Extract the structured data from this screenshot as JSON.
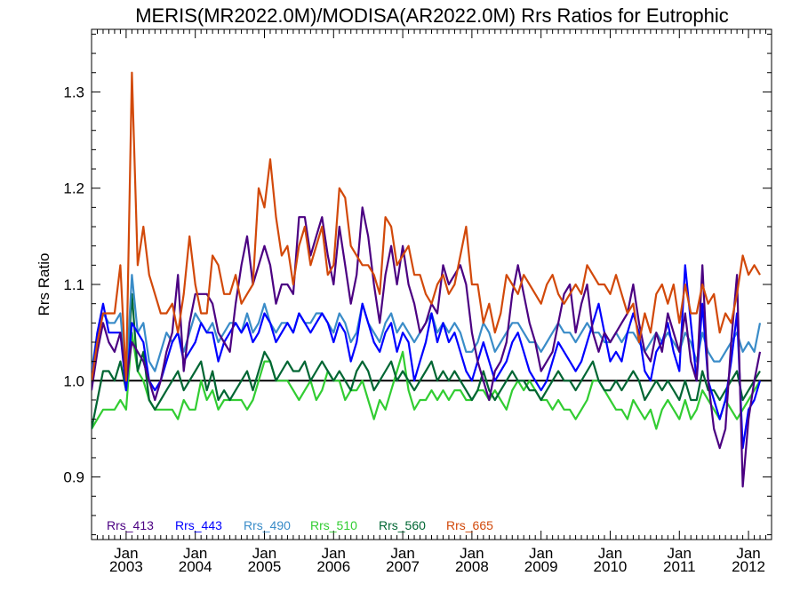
{
  "chart_data": {
    "type": "line",
    "title": "MERIS(MR2022.0M)/MODISA(AR2022.0M)  Rrs Ratios for Eutrophic",
    "xlabel": "",
    "ylabel": "Rrs Ratio",
    "xlim": [
      "2002-07-01",
      "2012-05-01"
    ],
    "ylim": [
      0.835,
      1.365
    ],
    "yticks": [
      0.9,
      1.0,
      1.1,
      1.2,
      1.3
    ],
    "ytick_labels": [
      "0.9",
      "1.0",
      "1.1",
      "1.2",
      "1.3"
    ],
    "xticks": [
      "2003-01-01",
      "2004-01-01",
      "2005-01-01",
      "2006-01-01",
      "2007-01-01",
      "2008-01-01",
      "2009-01-01",
      "2010-01-01",
      "2011-01-01",
      "2012-01-01"
    ],
    "xtick_labels": [
      {
        "month": "Jan",
        "year": "2003"
      },
      {
        "month": "Jan",
        "year": "2004"
      },
      {
        "month": "Jan",
        "year": "2005"
      },
      {
        "month": "Jan",
        "year": "2006"
      },
      {
        "month": "Jan",
        "year": "2007"
      },
      {
        "month": "Jan",
        "year": "2008"
      },
      {
        "month": "Jan",
        "year": "2009"
      },
      {
        "month": "Jan",
        "year": "2010"
      },
      {
        "month": "Jan",
        "year": "2011"
      },
      {
        "month": "Jan",
        "year": "2012"
      }
    ],
    "reference_line": {
      "y": 1.0,
      "color": "#000000"
    },
    "grid": false,
    "legend_placement": "bottom-left",
    "x_start": "2002-07",
    "x_step": "1 month",
    "series": [
      {
        "name": "Rrs_413",
        "color": "#4B0082",
        "values": [
          0.99,
          1.03,
          1.06,
          1.04,
          1.03,
          1.05,
          1.0,
          1.04,
          1.03,
          1.02,
          1.0,
          0.98,
          1.0,
          1.03,
          1.05,
          1.11,
          1.01,
          1.06,
          1.09,
          1.09,
          1.09,
          1.08,
          1.05,
          1.04,
          1.03,
          1.08,
          1.12,
          1.15,
          1.1,
          1.12,
          1.14,
          1.12,
          1.08,
          1.1,
          1.1,
          1.09,
          1.17,
          1.17,
          1.13,
          1.15,
          1.17,
          1.13,
          1.1,
          1.16,
          1.12,
          1.08,
          1.11,
          1.18,
          1.15,
          1.1,
          1.06,
          1.11,
          1.14,
          1.1,
          1.14,
          1.1,
          1.08,
          1.05,
          1.06,
          1.08,
          1.07,
          1.12,
          1.1,
          1.11,
          1.12,
          1.1,
          1.05,
          1.02,
          1.0,
          0.98,
          1.01,
          1.02,
          1.04,
          1.09,
          1.12,
          1.09,
          1.06,
          1.04,
          1.01,
          1.02,
          1.03,
          1.06,
          1.09,
          1.1,
          1.05,
          1.08,
          1.1,
          1.05,
          1.03,
          1.05,
          1.04,
          1.05,
          1.06,
          1.07,
          1.1,
          1.06,
          1.03,
          1.02,
          1.05,
          1.03,
          1.07,
          1.05,
          1.03,
          1.07,
          1.02,
          1.0,
          1.12,
          1.0,
          0.95,
          0.93,
          0.95,
          1.04,
          1.11,
          0.89,
          0.96,
          1.0,
          1.03
        ]
      },
      {
        "name": "Rrs_443",
        "color": "#0000FF",
        "values": [
          1.0,
          1.05,
          1.08,
          1.05,
          1.05,
          1.05,
          0.99,
          1.06,
          1.05,
          1.04,
          1.0,
          0.99,
          1.0,
          1.02,
          1.04,
          1.05,
          1.02,
          1.03,
          1.04,
          1.06,
          1.05,
          1.05,
          1.02,
          1.04,
          1.05,
          1.06,
          1.05,
          1.06,
          1.04,
          1.05,
          1.07,
          1.06,
          1.04,
          1.05,
          1.06,
          1.05,
          1.07,
          1.06,
          1.05,
          1.06,
          1.07,
          1.06,
          1.04,
          1.06,
          1.05,
          1.02,
          1.04,
          1.08,
          1.06,
          1.04,
          1.03,
          1.05,
          1.06,
          1.03,
          1.05,
          1.04,
          1.0,
          1.02,
          1.04,
          1.07,
          1.04,
          1.06,
          1.04,
          1.05,
          1.03,
          1.01,
          1.0,
          1.02,
          1.04,
          1.02,
          1.0,
          1.01,
          1.02,
          1.04,
          1.05,
          1.03,
          1.01,
          1.0,
          0.99,
          1.0,
          1.02,
          1.04,
          1.03,
          1.02,
          1.01,
          1.02,
          1.04,
          1.06,
          1.08,
          1.05,
          1.02,
          1.03,
          1.02,
          1.05,
          1.07,
          1.05,
          1.01,
          1.0,
          1.03,
          1.04,
          1.06,
          1.03,
          1.01,
          1.12,
          1.06,
          1.0,
          1.08,
          1.0,
          0.98,
          0.96,
          0.98,
          1.02,
          1.07,
          0.93,
          0.97,
          0.98,
          1.0
        ]
      },
      {
        "name": "Rrs_490",
        "color": "#3A8CC8",
        "values": [
          1.01,
          1.05,
          1.07,
          1.06,
          1.06,
          1.07,
          1.0,
          1.11,
          1.05,
          1.06,
          1.02,
          1.01,
          1.03,
          1.05,
          1.04,
          1.05,
          1.03,
          1.05,
          1.07,
          1.06,
          1.05,
          1.06,
          1.04,
          1.05,
          1.06,
          1.06,
          1.05,
          1.07,
          1.05,
          1.06,
          1.08,
          1.06,
          1.05,
          1.06,
          1.06,
          1.05,
          1.07,
          1.06,
          1.06,
          1.07,
          1.07,
          1.06,
          1.05,
          1.07,
          1.06,
          1.04,
          1.05,
          1.08,
          1.06,
          1.05,
          1.04,
          1.06,
          1.07,
          1.05,
          1.06,
          1.05,
          1.04,
          1.05,
          1.06,
          1.07,
          1.05,
          1.06,
          1.05,
          1.06,
          1.05,
          1.03,
          1.03,
          1.04,
          1.06,
          1.05,
          1.03,
          1.04,
          1.05,
          1.06,
          1.06,
          1.05,
          1.04,
          1.04,
          1.03,
          1.04,
          1.05,
          1.06,
          1.05,
          1.05,
          1.04,
          1.05,
          1.06,
          1.05,
          1.05,
          1.04,
          1.04,
          1.05,
          1.04,
          1.05,
          1.05,
          1.04,
          1.03,
          1.04,
          1.05,
          1.04,
          1.05,
          1.04,
          1.03,
          1.05,
          1.04,
          1.02,
          1.05,
          1.03,
          1.02,
          1.02,
          1.03,
          1.04,
          1.05,
          1.03,
          1.04,
          1.03,
          1.06
        ]
      },
      {
        "name": "Rrs_510",
        "color": "#32CD32",
        "values": [
          0.95,
          0.96,
          0.97,
          0.97,
          0.97,
          0.98,
          0.97,
          1.05,
          1.01,
          1.0,
          0.98,
          0.97,
          0.97,
          0.97,
          0.97,
          0.96,
          0.98,
          0.97,
          0.97,
          1.0,
          0.98,
          0.99,
          0.97,
          0.98,
          0.98,
          0.98,
          0.98,
          0.97,
          0.98,
          1.0,
          1.02,
          1.02,
          1.0,
          1.0,
          1.0,
          0.99,
          0.98,
          0.99,
          1.0,
          0.98,
          0.99,
          1.01,
          1.0,
          1.0,
          0.98,
          0.99,
          0.99,
          1.0,
          0.98,
          0.96,
          0.98,
          0.97,
          0.99,
          1.01,
          1.03,
          0.99,
          0.97,
          0.98,
          0.98,
          0.99,
          0.98,
          0.99,
          0.98,
          0.99,
          0.99,
          0.98,
          0.98,
          0.99,
          0.99,
          0.98,
          0.99,
          0.98,
          0.97,
          0.99,
          1.0,
          0.99,
          1.0,
          0.99,
          0.98,
          0.98,
          0.97,
          0.98,
          0.97,
          0.97,
          0.96,
          0.97,
          0.98,
          1.0,
          1.0,
          0.99,
          0.98,
          0.97,
          0.97,
          0.96,
          0.98,
          0.97,
          0.96,
          0.97,
          0.95,
          0.97,
          0.98,
          0.97,
          0.96,
          0.98,
          0.96,
          0.97,
          0.99,
          0.98,
          0.97,
          0.96,
          0.98,
          0.97,
          0.96,
          0.97,
          0.98,
          0.99,
          1.0
        ]
      },
      {
        "name": "Rrs_560",
        "color": "#006633",
        "values": [
          0.95,
          0.98,
          1.01,
          1.01,
          1.0,
          1.02,
          0.99,
          1.09,
          1.01,
          1.03,
          0.98,
          0.97,
          0.98,
          0.99,
          1.0,
          1.01,
          0.99,
          1.0,
          1.01,
          1.02,
          0.99,
          1.01,
          0.98,
          0.99,
          0.98,
          0.99,
          1.0,
          1.01,
          0.99,
          1.01,
          1.03,
          1.02,
          1.0,
          1.01,
          1.02,
          1.01,
          1.01,
          1.02,
          1.0,
          1.01,
          1.02,
          1.01,
          1.0,
          1.01,
          1.0,
          0.99,
          1.01,
          1.02,
          1.01,
          0.99,
          1.0,
          1.01,
          1.02,
          1.0,
          1.01,
          1.0,
          0.99,
          1.0,
          1.01,
          1.02,
          1.0,
          1.01,
          1.0,
          1.01,
          1.0,
          0.99,
          0.98,
          0.99,
          1.01,
          0.99,
          0.98,
          0.99,
          1.0,
          1.01,
          1.0,
          1.0,
          0.99,
          0.99,
          0.98,
          0.99,
          1.0,
          1.01,
          1.0,
          1.0,
          0.99,
          1.0,
          1.01,
          1.02,
          1.0,
          0.99,
          0.99,
          1.0,
          0.99,
          1.0,
          1.01,
          1.0,
          0.98,
          0.99,
          1.0,
          0.99,
          1.0,
          0.99,
          0.98,
          1.0,
          0.98,
          0.98,
          1.01,
          0.99,
          0.99,
          0.98,
          0.99,
          1.0,
          1.01,
          0.98,
          0.99,
          1.0,
          1.01
        ]
      },
      {
        "name": "Rrs_665",
        "color": "#D2490A",
        "values": [
          1.0,
          1.04,
          1.07,
          1.07,
          1.07,
          1.12,
          1.0,
          1.32,
          1.12,
          1.16,
          1.11,
          1.09,
          1.07,
          1.07,
          1.08,
          1.05,
          1.09,
          1.15,
          1.1,
          1.07,
          1.07,
          1.13,
          1.12,
          1.09,
          1.09,
          1.11,
          1.08,
          1.09,
          1.1,
          1.2,
          1.18,
          1.23,
          1.17,
          1.13,
          1.14,
          1.1,
          1.14,
          1.16,
          1.12,
          1.14,
          1.16,
          1.11,
          1.12,
          1.2,
          1.19,
          1.14,
          1.13,
          1.12,
          1.12,
          1.11,
          1.09,
          1.17,
          1.16,
          1.12,
          1.13,
          1.14,
          1.11,
          1.11,
          1.09,
          1.08,
          1.1,
          1.11,
          1.09,
          1.1,
          1.13,
          1.16,
          1.1,
          1.1,
          1.06,
          1.08,
          1.05,
          1.07,
          1.11,
          1.1,
          1.09,
          1.11,
          1.1,
          1.09,
          1.08,
          1.1,
          1.11,
          1.09,
          1.08,
          1.09,
          1.1,
          1.09,
          1.12,
          1.11,
          1.1,
          1.1,
          1.09,
          1.11,
          1.09,
          1.07,
          1.08,
          1.04,
          1.07,
          1.05,
          1.09,
          1.1,
          1.08,
          1.1,
          1.06,
          1.1,
          1.07,
          1.07,
          1.1,
          1.08,
          1.09,
          1.05,
          1.07,
          1.06,
          1.09,
          1.13,
          1.11,
          1.12,
          1.11
        ]
      }
    ]
  }
}
